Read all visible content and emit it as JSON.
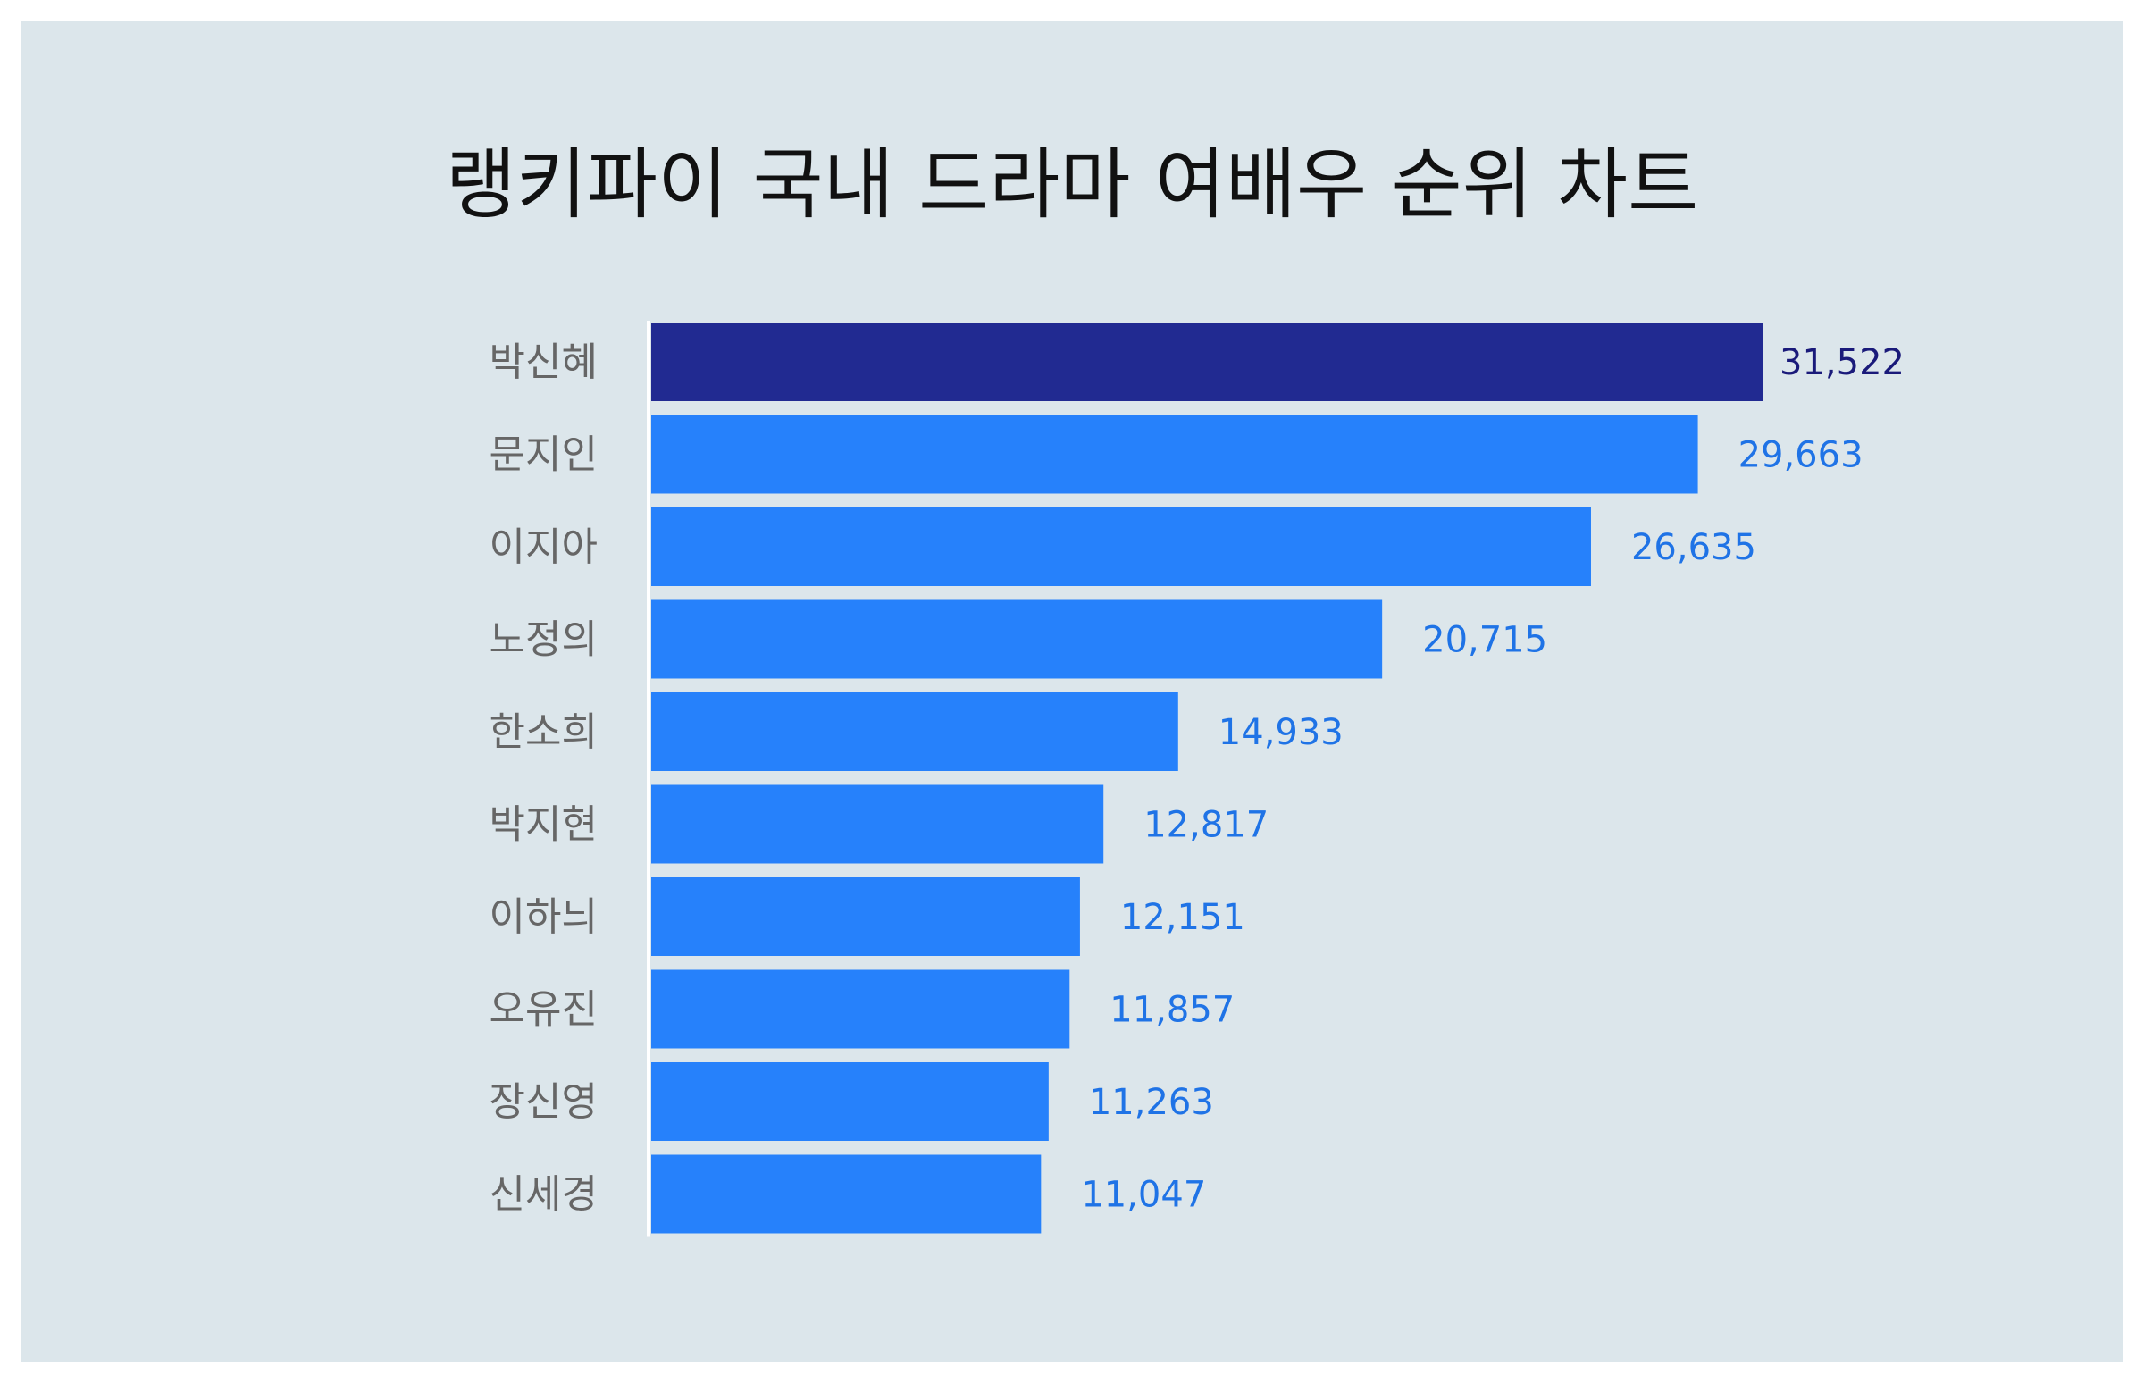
{
  "chart_data": {
    "type": "bar",
    "orientation": "horizontal",
    "title": "랭키파이 국내 드라마 여배우 순위 차트",
    "categories": [
      "박신혜",
      "문지인",
      "이지아",
      "노정의",
      "한소희",
      "박지현",
      "이하늬",
      "오유진",
      "장신영",
      "신세경"
    ],
    "values": [
      31522,
      29663,
      26635,
      20715,
      14933,
      12817,
      12151,
      11857,
      11263,
      11047
    ],
    "value_labels": [
      "31,522",
      "29,663",
      "26,635",
      "20,715",
      "14,933",
      "12,817",
      "12,151",
      "11,857",
      "11,263",
      "11,047"
    ],
    "xlim": [
      0,
      31522
    ],
    "grid": false,
    "legend": "none",
    "colors": {
      "highlight_bar": "#212a91",
      "bar": "#2681fb",
      "highlight_label": "#1a1a7a",
      "label": "#1f73e6",
      "background": "#dce6eb",
      "axis": "#ffffff"
    }
  }
}
